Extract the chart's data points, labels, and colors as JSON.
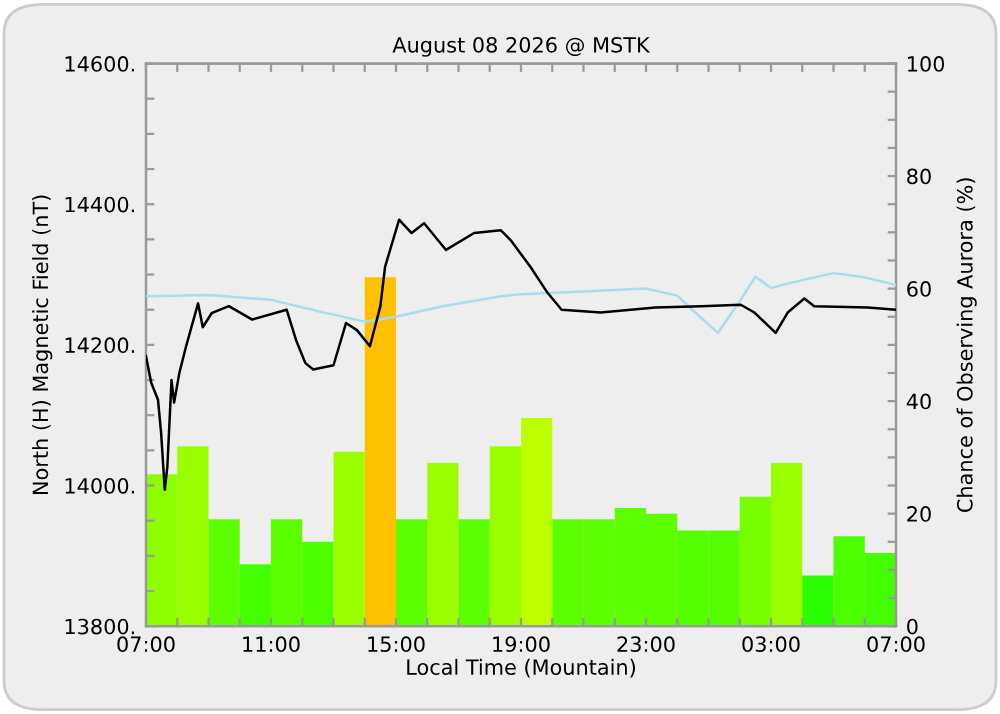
{
  "chart_data": {
    "type": "line",
    "title": "August 08 2026 @ MSTK",
    "xlabel": "Local Time (Mountain)",
    "ylabel": "North (H) Magnetic Field (nT)",
    "y2label": "Chance of Observing Aurora (%)",
    "xlim": [
      "2026-08-08T07:00",
      "2026-08-09T07:00"
    ],
    "xticks": [
      {
        "value": "2026-08-08T07:00",
        "label": "07:00"
      },
      {
        "value": "2026-08-08T08:00",
        "label": null
      },
      {
        "value": "2026-08-08T09:00",
        "label": null
      },
      {
        "value": "2026-08-08T10:00",
        "label": null
      },
      {
        "value": "2026-08-08T11:00",
        "label": "11:00"
      },
      {
        "value": "2026-08-08T12:00",
        "label": null
      },
      {
        "value": "2026-08-08T13:00",
        "label": null
      },
      {
        "value": "2026-08-08T14:00",
        "label": null
      },
      {
        "value": "2026-08-08T15:00",
        "label": "15:00"
      },
      {
        "value": "2026-08-08T16:00",
        "label": null
      },
      {
        "value": "2026-08-08T17:00",
        "label": null
      },
      {
        "value": "2026-08-08T18:00",
        "label": null
      },
      {
        "value": "2026-08-08T19:00",
        "label": "19:00"
      },
      {
        "value": "2026-08-08T20:00",
        "label": null
      },
      {
        "value": "2026-08-08T21:00",
        "label": null
      },
      {
        "value": "2026-08-08T22:00",
        "label": null
      },
      {
        "value": "2026-08-08T23:00",
        "label": "23:00"
      },
      {
        "value": "2026-08-09T00:00",
        "label": null
      },
      {
        "value": "2026-08-09T01:00",
        "label": null
      },
      {
        "value": "2026-08-09T02:00",
        "label": null
      },
      {
        "value": "2026-08-09T03:00",
        "label": "03:00"
      },
      {
        "value": "2026-08-09T04:00",
        "label": null
      },
      {
        "value": "2026-08-09T05:00",
        "label": null
      },
      {
        "value": "2026-08-09T06:00",
        "label": null
      },
      {
        "value": "2026-08-09T07:00",
        "label": "07:00"
      }
    ],
    "ylim": [
      13800,
      14600
    ],
    "yticks": [
      {
        "value": 13800,
        "label": "13800."
      },
      {
        "value": 13850,
        "label": null
      },
      {
        "value": 13900,
        "label": null
      },
      {
        "value": 13950,
        "label": null
      },
      {
        "value": 14000,
        "label": "14000."
      },
      {
        "value": 14050,
        "label": null
      },
      {
        "value": 14100,
        "label": null
      },
      {
        "value": 14150,
        "label": null
      },
      {
        "value": 14200,
        "label": "14200."
      },
      {
        "value": 14250,
        "label": null
      },
      {
        "value": 14300,
        "label": null
      },
      {
        "value": 14350,
        "label": null
      },
      {
        "value": 14400,
        "label": "14400."
      },
      {
        "value": 14450,
        "label": null
      },
      {
        "value": 14500,
        "label": null
      },
      {
        "value": 14550,
        "label": null
      },
      {
        "value": 14600,
        "label": "14600."
      }
    ],
    "y2lim": [
      0,
      100
    ],
    "y2ticks": [
      0,
      {
        "value": 5,
        "label": null
      },
      {
        "value": 10,
        "label": null
      },
      {
        "value": 15,
        "label": null
      },
      20,
      {
        "value": 25,
        "label": null
      },
      {
        "value": 30,
        "label": null
      },
      {
        "value": 35,
        "label": null
      },
      40,
      {
        "value": 45,
        "label": null
      },
      {
        "value": 50,
        "label": null
      },
      {
        "value": 55,
        "label": null
      },
      60,
      {
        "value": 65,
        "label": null
      },
      {
        "value": 70,
        "label": null
      },
      {
        "value": 75,
        "label": null
      },
      80,
      {
        "value": 85,
        "label": null
      },
      {
        "value": 90,
        "label": null
      },
      {
        "value": 95,
        "label": null
      },
      100
    ],
    "grid": false,
    "series": [
      {
        "type": "bar",
        "axis": "y2",
        "x": [
          "2026-08-08T07:30",
          "2026-08-08T08:30",
          "2026-08-08T09:30",
          "2026-08-08T10:30",
          "2026-08-08T11:30",
          "2026-08-08T12:30",
          "2026-08-08T13:30",
          "2026-08-08T14:30",
          "2026-08-08T15:30",
          "2026-08-08T16:30",
          "2026-08-08T17:30",
          "2026-08-08T18:30",
          "2026-08-08T19:30",
          "2026-08-08T20:30",
          "2026-08-08T21:30",
          "2026-08-08T22:30",
          "2026-08-08T23:30",
          "2026-08-09T00:30",
          "2026-08-09T01:30",
          "2026-08-09T02:30",
          "2026-08-09T03:30",
          "2026-08-09T04:30",
          "2026-08-09T05:30",
          "2026-08-09T06:30"
        ],
        "values": [
          27,
          32,
          19,
          11,
          19,
          15,
          31,
          62,
          19,
          29,
          19,
          32,
          37,
          19,
          19,
          21,
          20,
          17,
          17,
          23,
          29,
          9,
          16,
          13
        ],
        "colors": [
          "#8cff00",
          "#99ff00",
          "#5cff00",
          "#44ff00",
          "#5cff00",
          "#4cff00",
          "#99ff00",
          "#ffc000",
          "#5cff00",
          "#99ff00",
          "#5cff00",
          "#99ff00",
          "#bbff00",
          "#5cff00",
          "#5cff00",
          "#5eff00",
          "#5cff00",
          "#55ff00",
          "#55ff00",
          "#77ff00",
          "#99ff00",
          "#2aff00",
          "#4cff00",
          "#44ff00"
        ]
      },
      {
        "axis": "y",
        "color": "#a8dcef",
        "x": [
          "2026-08-08T07:00",
          "2026-08-08T09:00",
          "2026-08-08T11:00",
          "2026-08-08T12:30",
          "2026-08-08T14:00",
          "2026-08-08T15:00",
          "2026-08-08T16:30",
          "2026-08-08T18:21",
          "2026-08-08T19:00",
          "2026-08-08T21:00",
          "2026-08-08T23:00",
          "2026-08-09T00:00",
          "2026-08-09T00:36",
          "2026-08-09T01:18",
          "2026-08-09T02:00",
          "2026-08-09T02:30",
          "2026-08-09T03:00",
          "2026-08-09T04:00",
          "2026-08-09T05:00",
          "2026-08-09T06:00",
          "2026-08-09T07:00"
        ],
        "values": [
          14269,
          14271,
          14264,
          14248,
          14233,
          14240,
          14255,
          14269,
          14272,
          14276,
          14280,
          14270,
          14245,
          14217,
          14262,
          14297,
          14281,
          14292,
          14302,
          14296,
          14285
        ]
      },
      {
        "axis": "y",
        "color": "#000000",
        "x": [
          "2026-08-08T07:00",
          "2026-08-08T07:10",
          "2026-08-08T07:23",
          "2026-08-08T07:29",
          "2026-08-08T07:36",
          "2026-08-08T07:41",
          "2026-08-08T07:49",
          "2026-08-08T07:54",
          "2026-08-08T08:04",
          "2026-08-08T08:17",
          "2026-08-08T08:40",
          "2026-08-08T08:49",
          "2026-08-08T09:06",
          "2026-08-08T09:39",
          "2026-08-08T10:24",
          "2026-08-08T11:30",
          "2026-08-08T11:48",
          "2026-08-08T12:06",
          "2026-08-08T12:21",
          "2026-08-08T13:00",
          "2026-08-08T13:24",
          "2026-08-08T13:45",
          "2026-08-08T14:10",
          "2026-08-08T14:30",
          "2026-08-08T14:39",
          "2026-08-08T15:06",
          "2026-08-08T15:12",
          "2026-08-08T15:30",
          "2026-08-08T15:54",
          "2026-08-08T16:36",
          "2026-08-08T17:30",
          "2026-08-08T18:21",
          "2026-08-08T18:40",
          "2026-08-08T19:18",
          "2026-08-08T19:51",
          "2026-08-08T20:18",
          "2026-08-08T21:33",
          "2026-08-08T23:18",
          "2026-08-09T00:46",
          "2026-08-09T02:02",
          "2026-08-09T02:28",
          "2026-08-09T03:09",
          "2026-08-09T03:32",
          "2026-08-09T04:04",
          "2026-08-09T04:23",
          "2026-08-09T06:06",
          "2026-08-09T07:00"
        ],
        "values": [
          14184,
          14146,
          14122,
          14075,
          13994,
          14027,
          14150,
          14118,
          14160,
          14198,
          14259,
          14225,
          14245,
          14255,
          14236,
          14250,
          14207,
          14174,
          14165,
          14171,
          14231,
          14221,
          14198,
          14255,
          14311,
          14378,
          14373,
          14359,
          14373,
          14335,
          14359,
          14363,
          14349,
          14311,
          14274,
          14250,
          14246,
          14253,
          14255,
          14257,
          14246,
          14217,
          14246,
          14266,
          14255,
          14253,
          14250
        ]
      }
    ]
  }
}
